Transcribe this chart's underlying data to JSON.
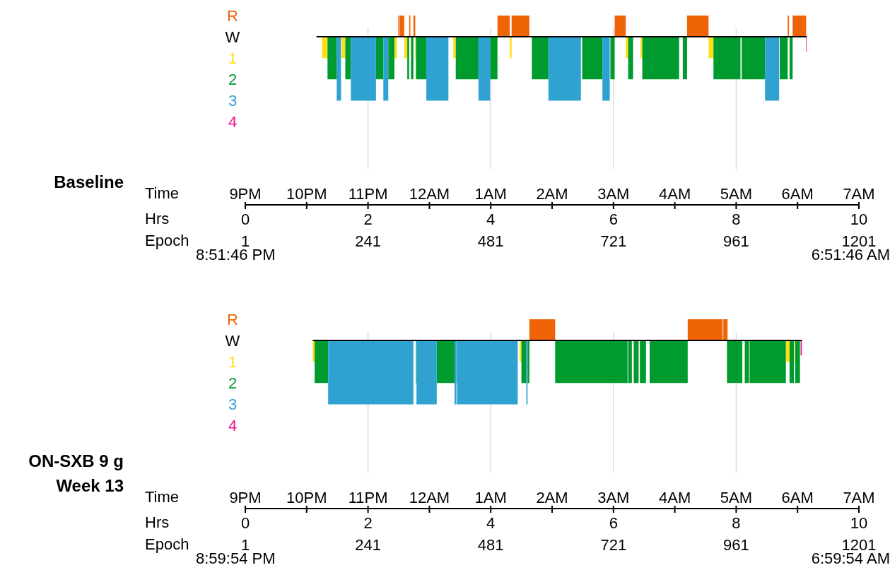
{
  "chart_data": [
    {
      "type": "area",
      "title": "Baseline",
      "xlabel": "Hrs",
      "x2label": "Epoch",
      "xlim": [
        0,
        10
      ],
      "xticks": [
        0,
        2,
        4,
        6,
        8,
        10
      ],
      "x2lim": [
        1,
        1201
      ],
      "x2ticks": [
        1,
        241,
        481,
        721,
        961,
        1201
      ],
      "ylim": [
        -7.9,
        1
      ],
      "yticks": [
        {
          "value": 1,
          "label": "R"
        },
        {
          "value": 0,
          "label": "W"
        },
        {
          "value": -1,
          "label": "1"
        },
        {
          "value": -2,
          "label": "2"
        },
        {
          "value": -3,
          "label": "3"
        },
        {
          "value": -4,
          "label": "4"
        }
      ],
      "grid": "x",
      "annotations": [
        "9PM",
        "10PM",
        "11PM",
        "12AM",
        "1AM",
        "2AM",
        "3AM",
        "4AM",
        "5AM",
        "6AM",
        "7AM",
        "Time",
        "8:51:46 PM",
        "6:51:46 AM"
      ],
      "series": [
        {
          "color": "#f06408",
          "x": [
            2.49,
            2.5,
            null,
            2.51,
            2.59,
            null,
            2.67,
            2.69,
            null,
            2.74,
            2.77,
            null,
            4.11,
            4.31,
            null,
            4.34,
            4.63,
            null,
            6.02,
            6.2,
            null,
            7.2,
            7.55,
            null,
            8.84,
            8.86,
            null,
            8.92,
            9.14,
            null
          ],
          "values": [
            1,
            1,
            null,
            1,
            1,
            null,
            1,
            1,
            null,
            1,
            1,
            null,
            1,
            1,
            null,
            1,
            1,
            null,
            1,
            1,
            null,
            1,
            1,
            null,
            1,
            1,
            null,
            1,
            1,
            null
          ]
        },
        {
          "type": "line",
          "color": "#000000",
          "x": [
            1.16,
            9.15
          ],
          "values": [
            0,
            0
          ]
        },
        {
          "color": "#ffe014",
          "x": [
            1.25,
            1.34,
            null,
            1.57,
            1.63,
            null,
            2.43,
            2.47,
            null,
            2.59,
            2.64,
            null,
            2.77,
            2.78,
            null,
            3.39,
            3.43,
            null,
            4.31,
            4.34,
            null,
            6.2,
            6.24,
            null,
            6.44,
            6.47,
            null,
            7.55,
            7.63,
            null
          ],
          "values": [
            -1,
            -1,
            null,
            -1,
            -1,
            null,
            -1,
            -1,
            null,
            -1,
            -1,
            null,
            -1,
            -1,
            null,
            -1,
            -1,
            null,
            -1,
            -1,
            null,
            -1,
            -1,
            null,
            -1,
            -1,
            null,
            -1,
            -1,
            null
          ]
        },
        {
          "color": "#009b2e",
          "x": [
            1.34,
            1.49,
            null,
            1.63,
            1.72,
            null,
            2.13,
            2.25,
            null,
            2.33,
            2.43,
            null,
            2.64,
            2.67,
            null,
            2.7,
            2.74,
            null,
            2.78,
            2.95,
            null,
            3.43,
            3.8,
            null,
            3.99,
            4.11,
            null,
            4.67,
            4.94,
            null,
            5.49,
            5.82,
            null,
            5.95,
            6.02,
            null,
            6.24,
            6.32,
            null,
            6.47,
            7.07,
            null,
            7.13,
            7.2,
            null,
            7.63,
            8.07,
            null,
            8.09,
            8.47,
            null,
            8.71,
            8.84,
            null,
            8.87,
            8.92,
            null
          ],
          "values": [
            -2,
            -2,
            null,
            -2,
            -2,
            null,
            -2,
            -2,
            null,
            -2,
            -2,
            null,
            -2,
            -2,
            null,
            -2,
            -2,
            null,
            -2,
            -2,
            null,
            -2,
            -2,
            null,
            -2,
            -2,
            null,
            -2,
            -2,
            null,
            -2,
            -2,
            null,
            -2,
            -2,
            null,
            -2,
            -2,
            null,
            -2,
            -2,
            null,
            -2,
            -2,
            null,
            -2,
            -2,
            null,
            -2,
            -2,
            null,
            -2,
            -2,
            null,
            -2,
            -2,
            null
          ]
        },
        {
          "color": "#30a2d2",
          "x": [
            1.49,
            1.56,
            null,
            1.72,
            2.13,
            null,
            2.25,
            2.33,
            null,
            2.95,
            3.31,
            null,
            3.8,
            3.99,
            null,
            4.94,
            5.47,
            null,
            5.82,
            5.94,
            null,
            8.47,
            8.7,
            null
          ],
          "values": [
            -3,
            -3,
            null,
            -3,
            -3,
            null,
            -3,
            -3,
            null,
            -3,
            -3,
            null,
            -3,
            -3,
            null,
            -3,
            -3,
            null,
            -3,
            -3,
            null,
            -3,
            -3,
            null
          ]
        },
        {
          "color": "#e8168c",
          "x": [
            9.14,
            9.15
          ],
          "values": [
            -0.7,
            -0.7
          ]
        }
      ]
    },
    {
      "type": "area",
      "title": "ON-SXB 9 g\nWeek 13",
      "xlabel": "Hrs",
      "x2label": "Epoch",
      "xlim": [
        0,
        10
      ],
      "xticks": [
        0,
        2,
        4,
        6,
        8,
        10
      ],
      "x2lim": [
        1,
        1201
      ],
      "x2ticks": [
        1,
        241,
        481,
        721,
        961,
        1201
      ],
      "ylim": [
        -7.9,
        1
      ],
      "yticks": [
        {
          "value": 1,
          "label": "R"
        },
        {
          "value": 0,
          "label": "W"
        },
        {
          "value": -1,
          "label": "1"
        },
        {
          "value": -2,
          "label": "2"
        },
        {
          "value": -3,
          "label": "3"
        },
        {
          "value": -4,
          "label": "4"
        }
      ],
      "grid": "x",
      "annotations": [
        "9PM",
        "10PM",
        "11PM",
        "12AM",
        "1AM",
        "2AM",
        "3AM",
        "4AM",
        "5AM",
        "6AM",
        "7AM",
        "Time",
        "8:59:54 PM",
        "6:59:54 AM"
      ],
      "series": [
        {
          "color": "#f06408",
          "x": [
            4.63,
            5.05,
            null,
            7.21,
            7.78,
            null,
            7.79,
            7.86,
            null
          ],
          "values": [
            1,
            1,
            null,
            1,
            1,
            null,
            1,
            1,
            null
          ]
        },
        {
          "type": "line",
          "color": "#000000",
          "x": [
            1.1,
            9.07
          ],
          "values": [
            0,
            0
          ]
        },
        {
          "color": "#ffe014",
          "x": [
            1.1,
            1.13,
            null,
            4.47,
            4.5,
            null,
            8.81,
            8.87,
            null,
            8.94,
            8.95,
            null
          ],
          "values": [
            -1,
            -1,
            null,
            -1,
            -1,
            null,
            -1,
            -1,
            null,
            -1,
            -1,
            null
          ]
        },
        {
          "color": "#009b2e",
          "x": [
            1.13,
            1.35,
            null,
            2.78,
            2.79,
            null,
            3.12,
            3.41,
            null,
            3.44,
            3.45,
            null,
            4.5,
            4.58,
            null,
            4.6,
            4.63,
            null,
            5.05,
            6.23,
            null,
            6.24,
            6.3,
            null,
            6.33,
            6.41,
            null,
            6.43,
            6.53,
            null,
            6.59,
            7.21,
            null,
            7.85,
            8.1,
            null,
            8.14,
            8.21,
            null,
            8.22,
            8.81,
            null,
            8.87,
            8.94,
            null,
            8.96,
            9.04,
            null
          ],
          "values": [
            -2,
            -2,
            null,
            -2,
            -2,
            null,
            -2,
            -2,
            null,
            -2,
            -2,
            null,
            -2,
            -2,
            null,
            -2,
            -2,
            null,
            -2,
            -2,
            null,
            -2,
            -2,
            null,
            -2,
            -2,
            null,
            -2,
            -2,
            null,
            -2,
            -2,
            null,
            -2,
            -2,
            null,
            -2,
            -2,
            null,
            -2,
            -2,
            null,
            -2,
            -2,
            null,
            -2,
            -2,
            null
          ]
        },
        {
          "color": "#30a2d2",
          "x": [
            1.35,
            2.74,
            null,
            2.79,
            3.12,
            null,
            3.41,
            3.44,
            null,
            3.45,
            4.44,
            null,
            4.58,
            4.6,
            null
          ],
          "values": [
            -3,
            -3,
            null,
            -3,
            -3,
            null,
            -3,
            -3,
            null,
            -3,
            -3,
            null,
            -3,
            -3,
            null
          ]
        },
        {
          "color": "#e8168c",
          "x": [
            9.05,
            9.07
          ],
          "values": [
            -0.7,
            -0.7
          ]
        }
      ]
    }
  ]
}
